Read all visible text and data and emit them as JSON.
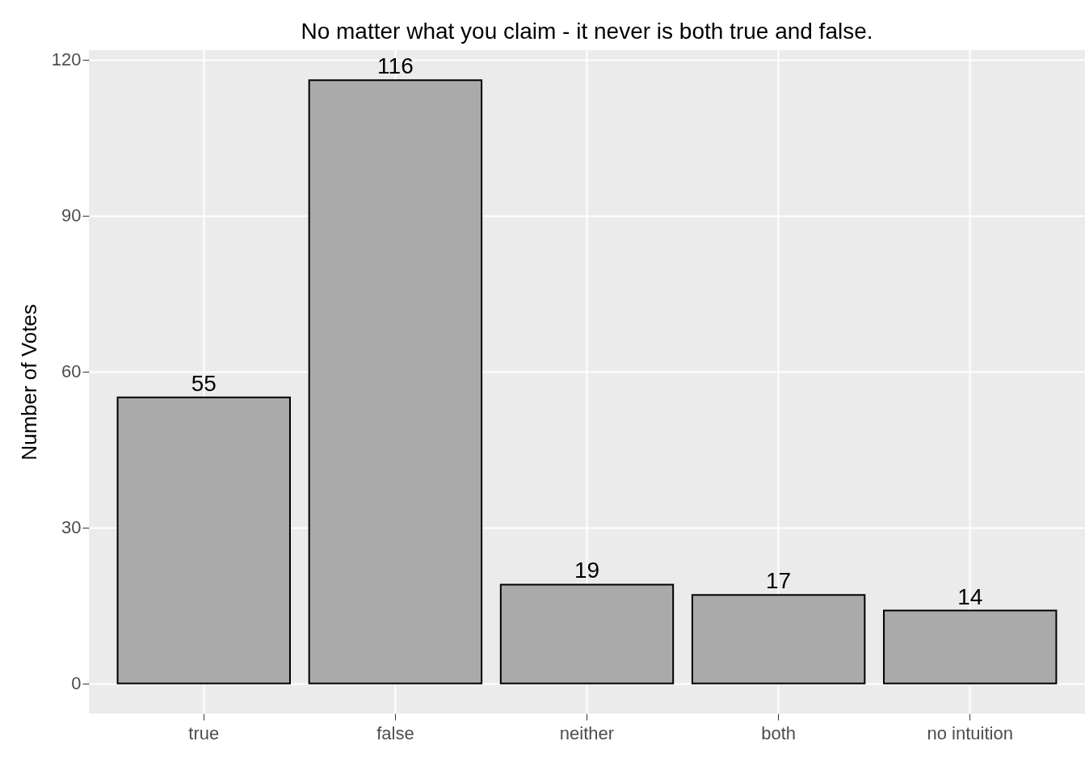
{
  "chart_data": {
    "type": "bar",
    "title": "No matter what you claim - it never is both true and false.",
    "ylabel": "Number of Votes",
    "categories": [
      "true",
      "false",
      "neither",
      "both",
      "no intuition"
    ],
    "values": [
      55,
      116,
      19,
      17,
      14
    ],
    "color": "#aaaaaa",
    "ylim": [
      -5.8,
      121.8
    ],
    "yticks": [
      0,
      30,
      60,
      90,
      120
    ],
    "grid": true,
    "data_labels": true
  }
}
